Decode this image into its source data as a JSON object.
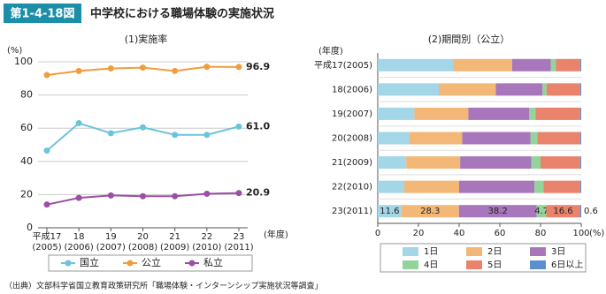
{
  "header": {
    "badge": "第1-4-18図",
    "title": "中学校における職場体験の実施状況"
  },
  "chart_data": [
    {
      "type": "line",
      "title": "(1)実施率",
      "ylabel": "(%)",
      "xlabel": "(年度)",
      "categories": [
        "平成17(2005)",
        "18(2006)",
        "19(2007)",
        "20(2008)",
        "21(2009)",
        "22(2010)",
        "23(2011)"
      ],
      "ylim": [
        0,
        100
      ],
      "yticks": [
        0,
        20,
        40,
        60,
        80,
        100
      ],
      "grid": true,
      "series": [
        {
          "name": "国立",
          "color": "#6cc4dc",
          "values": [
            46.5,
            63,
            57,
            60.5,
            56,
            56,
            61.0
          ],
          "value_labels": [
            null,
            null,
            null,
            null,
            null,
            null,
            "61.0"
          ]
        },
        {
          "name": "公立",
          "color": "#ef9e3e",
          "values": [
            92,
            94.5,
            96,
            96.5,
            94.5,
            97,
            96.9
          ],
          "value_labels": [
            null,
            null,
            null,
            null,
            null,
            null,
            "96.9"
          ]
        },
        {
          "name": "私立",
          "color": "#9b4fa5",
          "values": [
            14,
            18,
            19.5,
            19,
            19,
            20.5,
            20.9
          ],
          "value_labels": [
            null,
            null,
            null,
            null,
            null,
            null,
            "20.9"
          ]
        }
      ]
    },
    {
      "type": "stacked_barh",
      "title": "(2)期間別（公立）",
      "ylabel": "(年度)",
      "xlabel": "(%)",
      "categories": [
        "平成17(2005)",
        "18(2006)",
        "19(2007)",
        "20(2008)",
        "21(2009)",
        "22(2010)",
        "23(2011)"
      ],
      "xlim": [
        0,
        100
      ],
      "xticks": [
        0,
        20,
        40,
        60,
        80,
        100
      ],
      "series": [
        {
          "name": "1日",
          "color": "#a3d6e6",
          "values": [
            37,
            30,
            18,
            15.5,
            14,
            13,
            11.6
          ],
          "value_labels": [
            null,
            null,
            null,
            null,
            null,
            null,
            "11.6"
          ]
        },
        {
          "name": "2日",
          "color": "#f3b877",
          "values": [
            29,
            28,
            26.5,
            26,
            26.5,
            27,
            28.3
          ],
          "value_labels": [
            null,
            null,
            null,
            null,
            null,
            null,
            "28.3"
          ]
        },
        {
          "name": "3日",
          "color": "#a877bb",
          "values": [
            19,
            23,
            30,
            33.5,
            35,
            37,
            38.2
          ],
          "value_labels": [
            null,
            null,
            null,
            null,
            null,
            null,
            "38.2"
          ]
        },
        {
          "name": "4日",
          "color": "#94d39a",
          "values": [
            2.5,
            2,
            3,
            3.5,
            4.5,
            4.5,
            4.7
          ],
          "value_labels": [
            null,
            null,
            null,
            null,
            null,
            null,
            "4.7"
          ]
        },
        {
          "name": "5日",
          "color": "#e9836b",
          "values": [
            12,
            16.5,
            22,
            21,
            19.5,
            18,
            16.6
          ],
          "value_labels": [
            null,
            null,
            null,
            null,
            null,
            null,
            "16.6"
          ]
        },
        {
          "name": "6日以上",
          "color": "#5b8fd0",
          "values": [
            0.5,
            0.5,
            0.5,
            0.5,
            0.5,
            0.5,
            0.6
          ],
          "value_labels": [
            null,
            null,
            null,
            null,
            null,
            null,
            "0.6"
          ]
        }
      ]
    }
  ],
  "source": "（出典）文部科学省国立教育政策研究所「職場体験・インターンシップ実施状況等調査」"
}
